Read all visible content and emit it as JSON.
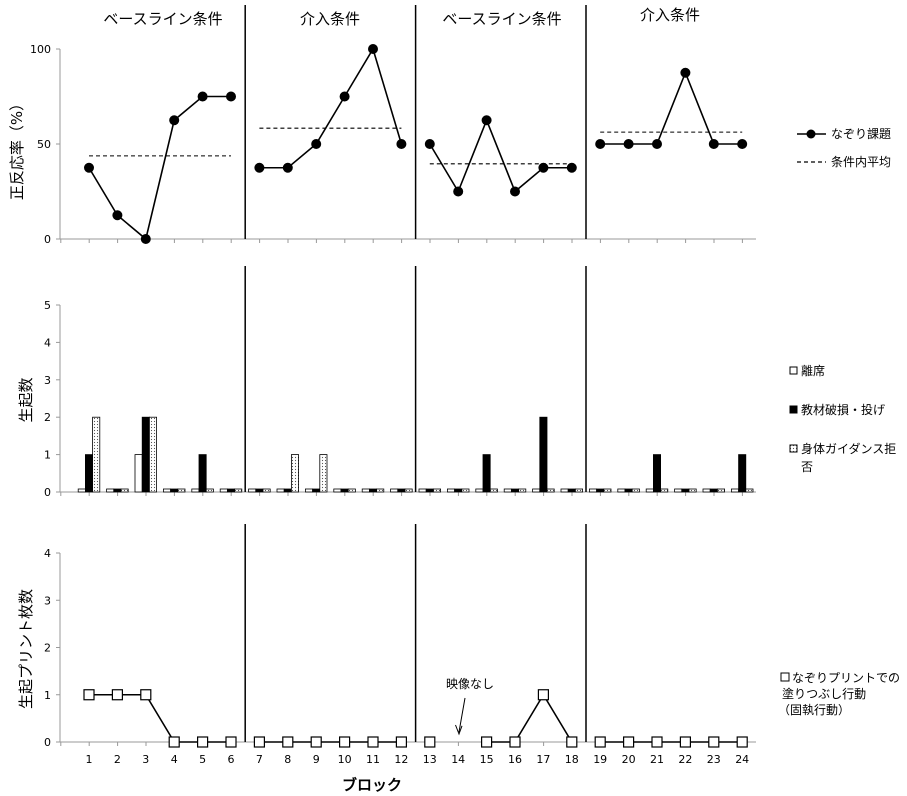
{
  "phase_labels": [
    "ベースライン条件",
    "介入条件",
    "ベースライン条件",
    "介入条件"
  ],
  "x_axis_label": "ブロック",
  "annotation": "映像なし",
  "chart_data": [
    {
      "type": "line",
      "ylabel": "正反応率（%）",
      "ylim": [
        0,
        100
      ],
      "yticks": [
        0,
        50,
        100
      ],
      "x": [
        1,
        2,
        3,
        4,
        5,
        6,
        7,
        8,
        9,
        10,
        11,
        12,
        13,
        14,
        15,
        16,
        17,
        18,
        19,
        20,
        21,
        22,
        23,
        24
      ],
      "phases": [
        [
          1,
          6
        ],
        [
          7,
          12
        ],
        [
          13,
          18
        ],
        [
          19,
          24
        ]
      ],
      "series": [
        {
          "name": "なぞり課題",
          "style": "solid-circle",
          "values": [
            37.5,
            12.5,
            0,
            62.5,
            75,
            75,
            37.5,
            37.5,
            50,
            75,
            100,
            50,
            50,
            25,
            62.5,
            25,
            37.5,
            37.5,
            50,
            50,
            50,
            87.5,
            50,
            50
          ]
        },
        {
          "name": "条件内平均",
          "style": "dashed",
          "phase_means": [
            43.75,
            58.33,
            39.58,
            56.25
          ]
        }
      ]
    },
    {
      "type": "bar",
      "ylabel": "生起数",
      "ylim": [
        0,
        5
      ],
      "yticks": [
        0,
        1,
        2,
        3,
        4,
        5
      ],
      "categories": [
        "1",
        "2",
        "3",
        "4",
        "5",
        "6",
        "7",
        "8",
        "9",
        "10",
        "11",
        "12",
        "13",
        "14",
        "15",
        "16",
        "17",
        "18",
        "19",
        "20",
        "21",
        "22",
        "23",
        "24"
      ],
      "series": [
        {
          "name": "離席",
          "fill": "white",
          "values": [
            0,
            0,
            1,
            0,
            0,
            0,
            0,
            0,
            0,
            0,
            0,
            0,
            0,
            0,
            0,
            0,
            0,
            0,
            0,
            0,
            0,
            0,
            0,
            0
          ]
        },
        {
          "name": "教材破損・投げ",
          "fill": "black",
          "values": [
            1,
            0,
            2,
            0,
            1,
            0,
            0,
            0,
            0,
            0,
            0,
            0,
            0,
            0,
            1,
            0,
            2,
            0,
            0,
            0,
            1,
            0,
            0,
            1
          ]
        },
        {
          "name": "身体ガイダンス拒否",
          "fill": "dotted",
          "values": [
            2,
            0,
            2,
            0,
            0,
            0,
            0,
            1,
            1,
            0,
            0,
            0,
            0,
            0,
            0,
            0,
            0,
            0,
            0,
            0,
            0,
            0,
            0,
            0
          ]
        }
      ]
    },
    {
      "type": "line",
      "ylabel": "生起プリント枚数",
      "ylim": [
        0,
        4
      ],
      "yticks": [
        0,
        1,
        2,
        3,
        4
      ],
      "x": [
        1,
        2,
        3,
        4,
        5,
        6,
        7,
        8,
        9,
        10,
        11,
        12,
        13,
        14,
        15,
        16,
        17,
        18,
        19,
        20,
        21,
        22,
        23,
        24
      ],
      "series": [
        {
          "name": "なぞりプリントでの塗りつぶし行動（固執行動）",
          "style": "open-square",
          "values": [
            1,
            1,
            1,
            0,
            0,
            0,
            0,
            0,
            0,
            0,
            0,
            0,
            0,
            null,
            0,
            0,
            1,
            0,
            0,
            0,
            0,
            0,
            0,
            0
          ]
        }
      ]
    }
  ],
  "legends": {
    "top": [
      {
        "label": "なぞり課題"
      },
      {
        "label": "条件内平均"
      }
    ],
    "middle": [
      {
        "label": "離席"
      },
      {
        "label": "教材破損・投げ"
      },
      {
        "label": "身体ガイダンス拒",
        "label2": "否"
      }
    ],
    "bottom": [
      {
        "label": "なぞりプリントでの",
        "label2": "塗りつぶし行動",
        "label3": "（固執行動）"
      }
    ]
  }
}
